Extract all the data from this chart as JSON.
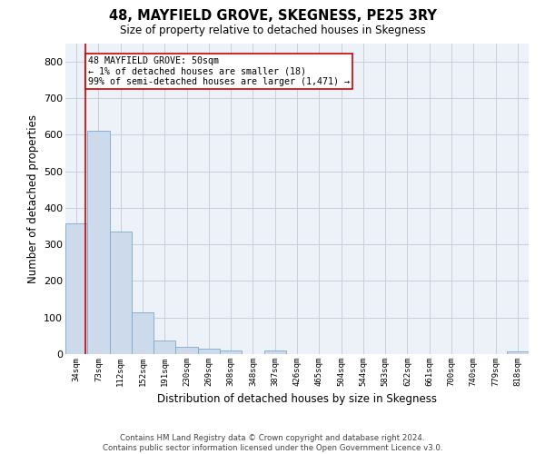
{
  "title": "48, MAYFIELD GROVE, SKEGNESS, PE25 3RY",
  "subtitle": "Size of property relative to detached houses in Skegness",
  "xlabel": "Distribution of detached houses by size in Skegness",
  "ylabel": "Number of detached properties",
  "bar_color": "#ccdaeb",
  "bar_edge_color": "#7aaacb",
  "grid_color": "#c5cfe0",
  "background_color": "#edf1f8",
  "categories": [
    "34sqm",
    "73sqm",
    "112sqm",
    "152sqm",
    "191sqm",
    "230sqm",
    "269sqm",
    "308sqm",
    "348sqm",
    "387sqm",
    "426sqm",
    "465sqm",
    "504sqm",
    "544sqm",
    "583sqm",
    "622sqm",
    "661sqm",
    "700sqm",
    "740sqm",
    "779sqm",
    "818sqm"
  ],
  "values": [
    358,
    611,
    336,
    115,
    36,
    21,
    16,
    11,
    0,
    9,
    0,
    0,
    0,
    0,
    0,
    0,
    0,
    0,
    0,
    0,
    8
  ],
  "ylim": [
    0,
    850
  ],
  "yticks": [
    0,
    100,
    200,
    300,
    400,
    500,
    600,
    700,
    800
  ],
  "annotation_text": "48 MAYFIELD GROVE: 50sqm\n← 1% of detached houses are smaller (18)\n99% of semi-detached houses are larger (1,471) →",
  "annotation_box_color": "white",
  "annotation_border_color": "#cc0000",
  "vline_color": "#cc0000",
  "vline_x_index": 0.42,
  "footer_line1": "Contains HM Land Registry data © Crown copyright and database right 2024.",
  "footer_line2": "Contains public sector information licensed under the Open Government Licence v3.0."
}
